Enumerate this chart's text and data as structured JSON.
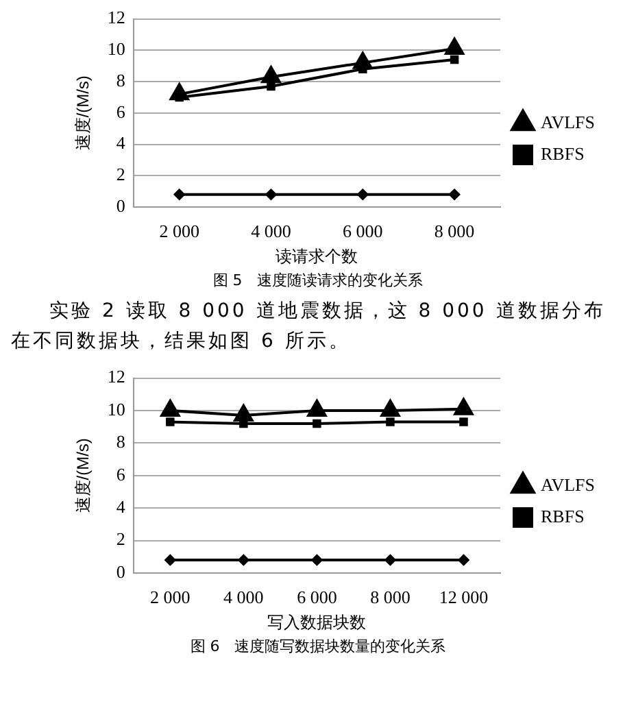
{
  "chart_data": [
    {
      "type": "line",
      "xlabel": "读请求个数",
      "ylabel": "速度/(M/s)",
      "categories": [
        "2 000",
        "4 000",
        "6 000",
        "8 000"
      ],
      "series": [
        {
          "color": "#000000",
          "marker": "diamond",
          "values": [
            0.8,
            0.8,
            0.8,
            0.8
          ]
        },
        {
          "name": "RBFS",
          "color": "#000000",
          "marker": "square",
          "values": [
            7.0,
            7.7,
            8.8,
            9.4
          ]
        },
        {
          "name": "AVLFS",
          "color": "#000000",
          "marker": "triangle",
          "values": [
            7.2,
            8.3,
            9.2,
            10.1
          ]
        }
      ],
      "ylim": [
        0,
        12
      ],
      "yticks": [
        0,
        2,
        4,
        6,
        8,
        10,
        12
      ],
      "grid": "y",
      "legend": "right",
      "annotations": [
        "图 5　速度随读请求的变化关系"
      ]
    },
    {
      "type": "line",
      "xlabel": "写入数据块数",
      "ylabel": "速度/(M/s)",
      "categories": [
        "2 000",
        "4 000",
        "6 000",
        "8 000",
        "12 000"
      ],
      "series": [
        {
          "color": "#000000",
          "marker": "diamond",
          "values": [
            0.8,
            0.8,
            0.8,
            0.8,
            0.8
          ]
        },
        {
          "name": "RBFS",
          "color": "#000000",
          "marker": "square",
          "values": [
            9.3,
            9.2,
            9.2,
            9.3,
            9.3
          ]
        },
        {
          "name": "AVLFS",
          "color": "#000000",
          "marker": "triangle",
          "values": [
            10.0,
            9.7,
            10.0,
            10.0,
            10.1
          ]
        }
      ],
      "ylim": [
        0,
        12
      ],
      "yticks": [
        0,
        2,
        4,
        6,
        8,
        10,
        12
      ],
      "grid": "y",
      "legend": "right",
      "annotations": [
        "实验 2 读取 8 000 道地震数据，这 8 000 道数据分布在不同数据块，结果如图 6 所示。",
        "图 6　速度随写数据块数量的变化关系"
      ]
    }
  ]
}
